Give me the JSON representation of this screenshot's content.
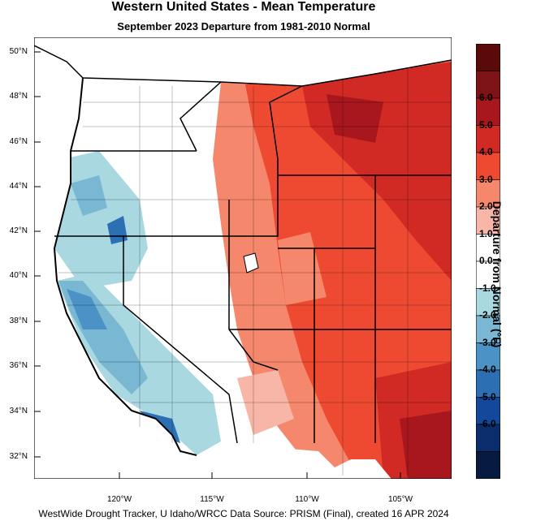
{
  "header": {
    "title": "Western United States - Mean Temperature",
    "subtitle": "September 2023  Departure from 1981-2010 Normal"
  },
  "footer": {
    "credit": "WestWide Drought Tracker, U Idaho/WRCC Data Source: PRISM (Final), created 16 APR 2024"
  },
  "map": {
    "latitude_labels": [
      "50°N",
      "48°N",
      "46°N",
      "44°N",
      "42°N",
      "40°N",
      "38°N",
      "36°N",
      "34°N",
      "32°N"
    ],
    "longitude_labels": [
      "120°W",
      "115°W",
      "110°W",
      "105°W"
    ],
    "region": "Western United States",
    "variable": "Mean Temperature departure"
  },
  "colorbar": {
    "title": "Departure from Normal (°F)",
    "tick_labels": [
      "6.0",
      "5.0",
      "4.0",
      "3.0",
      "2.0",
      "1.0",
      "0.0",
      "-1.0",
      "-2.0",
      "-3.0",
      "-4.0",
      "-5.0",
      "-6.0"
    ],
    "colors": [
      "#5b0a0a",
      "#7d1316",
      "#a8171d",
      "#d12a24",
      "#ee4a32",
      "#f5876c",
      "#f8b6a8",
      "#ffffff",
      "#ffffff",
      "#a9d8e0",
      "#79b7d3",
      "#4b93c7",
      "#2d6fb3",
      "#14489a",
      "#0b2d6b",
      "#071a40"
    ]
  }
}
